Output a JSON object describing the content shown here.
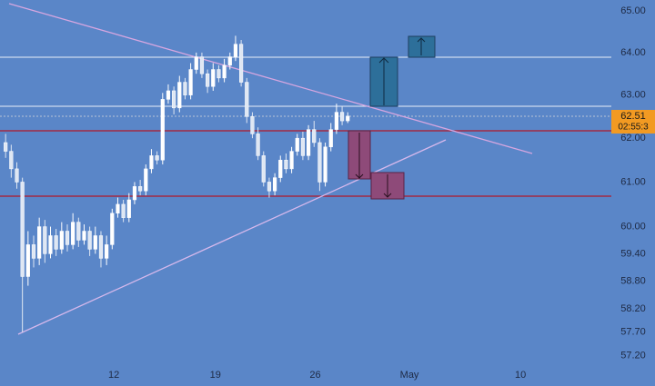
{
  "chart_data": {
    "type": "candlestick",
    "x": [
      0,
      1,
      2,
      3,
      4,
      5,
      6,
      7,
      8,
      9,
      10,
      11,
      12,
      13,
      14,
      15,
      16,
      17,
      18,
      19,
      20,
      21,
      22,
      23,
      24,
      25,
      26,
      27,
      28,
      29,
      30,
      31,
      32,
      33,
      34,
      35,
      36,
      37,
      38,
      39,
      40,
      41,
      42,
      43,
      44,
      45,
      46,
      47,
      48,
      49,
      50,
      51,
      52,
      53,
      54,
      55,
      56,
      57,
      58,
      59,
      60,
      61
    ],
    "open": [
      61.9,
      61.7,
      61.3,
      61.0,
      58.9,
      59.6,
      59.3,
      60.0,
      59.4,
      59.8,
      59.5,
      59.9,
      59.6,
      60.1,
      59.7,
      59.9,
      59.5,
      59.8,
      59.3,
      59.6,
      60.3,
      60.5,
      60.2,
      60.6,
      60.9,
      60.8,
      61.3,
      61.6,
      61.5,
      62.9,
      63.1,
      62.7,
      63.3,
      63.0,
      63.6,
      63.9,
      63.5,
      63.2,
      63.6,
      63.4,
      63.7,
      63.9,
      64.2,
      63.3,
      62.5,
      62.1,
      61.6,
      61.0,
      60.8,
      61.1,
      61.5,
      61.3,
      61.7,
      62.0,
      61.6,
      62.2,
      61.9,
      61.0,
      61.8,
      62.2,
      62.6,
      62.4
    ],
    "high": [
      62.1,
      61.85,
      61.45,
      61.1,
      59.9,
      59.8,
      60.2,
      60.15,
      60.0,
      59.95,
      60.1,
      60.05,
      60.3,
      60.2,
      60.05,
      60.0,
      60.0,
      59.9,
      59.8,
      60.4,
      60.65,
      60.6,
      60.75,
      61.0,
      61.05,
      61.4,
      61.75,
      61.7,
      63.05,
      63.25,
      63.2,
      63.45,
      63.4,
      63.75,
      64.0,
      64.0,
      63.6,
      63.75,
      63.7,
      63.85,
      64.0,
      64.4,
      64.3,
      63.4,
      62.6,
      62.25,
      61.7,
      61.1,
      61.2,
      61.6,
      61.65,
      61.8,
      62.1,
      62.15,
      62.3,
      62.4,
      62.0,
      61.9,
      62.35,
      62.8,
      62.75,
      62.6
    ],
    "low": [
      61.55,
      61.1,
      60.85,
      57.7,
      58.7,
      59.1,
      59.15,
      59.2,
      59.3,
      59.35,
      59.4,
      59.45,
      59.5,
      59.55,
      59.6,
      59.35,
      59.4,
      59.1,
      59.15,
      59.5,
      60.2,
      60.1,
      60.1,
      60.5,
      60.7,
      60.7,
      61.2,
      61.4,
      61.4,
      62.8,
      62.55,
      62.6,
      62.9,
      62.9,
      63.5,
      63.4,
      63.05,
      63.1,
      63.3,
      63.3,
      63.6,
      63.8,
      63.2,
      62.35,
      62.0,
      61.5,
      60.9,
      60.65,
      60.7,
      61.0,
      61.2,
      61.2,
      61.6,
      61.5,
      61.5,
      61.8,
      60.8,
      60.9,
      61.7,
      62.1,
      62.3,
      62.35
    ],
    "close": [
      61.7,
      61.3,
      61.0,
      58.9,
      59.6,
      59.3,
      60.0,
      59.4,
      59.8,
      59.5,
      59.9,
      59.6,
      60.1,
      59.7,
      59.9,
      59.5,
      59.8,
      59.3,
      59.6,
      60.3,
      60.5,
      60.2,
      60.6,
      60.9,
      60.8,
      61.3,
      61.6,
      61.5,
      62.9,
      63.1,
      62.7,
      63.3,
      63.0,
      63.6,
      63.9,
      63.5,
      63.2,
      63.6,
      63.4,
      63.7,
      63.9,
      64.2,
      63.3,
      62.5,
      62.1,
      61.6,
      61.0,
      60.8,
      61.1,
      61.5,
      61.3,
      61.7,
      62.0,
      61.6,
      62.2,
      61.9,
      61.0,
      61.8,
      62.2,
      62.6,
      62.4,
      62.51
    ],
    "color": "#ffffff",
    "down_color": "#dfe7f3",
    "xlim": [
      -1,
      108
    ],
    "xticks": [
      {
        "value": 19.3,
        "label": "12"
      },
      {
        "value": 37.4,
        "label": "19"
      },
      {
        "value": 55.2,
        "label": "26"
      },
      {
        "value": 72,
        "label": "May"
      },
      {
        "value": 91.8,
        "label": "10"
      }
    ],
    "ylim": [
      56.94,
      65.26
    ],
    "log_scale": true,
    "yticks": [
      {
        "value": 65,
        "label": "65.00"
      },
      {
        "value": 64,
        "label": "64.00"
      },
      {
        "value": 63,
        "label": "63.00"
      },
      {
        "value": 62,
        "label": "62.00"
      },
      {
        "value": 61,
        "label": "61.00"
      },
      {
        "value": 60,
        "label": "60.00"
      },
      {
        "value": 59.4,
        "label": "59.40"
      },
      {
        "value": 58.8,
        "label": "58.80"
      },
      {
        "value": 58.2,
        "label": "58.20"
      },
      {
        "value": 57.7,
        "label": "57.70"
      },
      {
        "value": 57.2,
        "label": "57.20"
      }
    ],
    "last_price": 62.51,
    "countdown": "02:55:3"
  }
}
